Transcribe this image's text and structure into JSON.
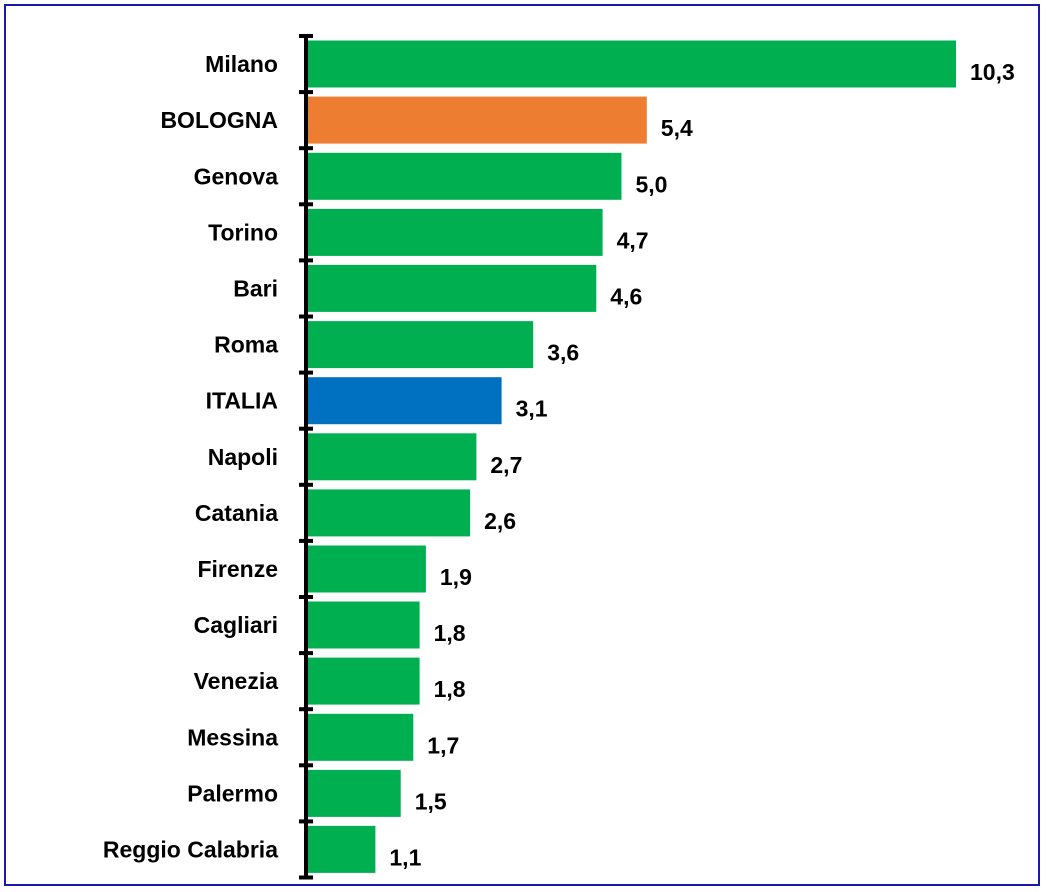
{
  "chart_data": {
    "type": "bar",
    "orientation": "horizontal",
    "categories": [
      "Milano",
      "BOLOGNA",
      "Genova",
      "Torino",
      "Bari",
      "Roma",
      "ITALIA",
      "Napoli",
      "Catania",
      "Firenze",
      "Cagliari",
      "Venezia",
      "Messina",
      "Palermo",
      "Reggio Calabria"
    ],
    "values": [
      10.3,
      5.4,
      5.0,
      4.7,
      4.6,
      3.6,
      3.1,
      2.7,
      2.6,
      1.9,
      1.8,
      1.8,
      1.7,
      1.5,
      1.1
    ],
    "value_labels": [
      "10,3",
      "5,4",
      "5,0",
      "4,7",
      "4,6",
      "3,6",
      "3,1",
      "2,7",
      "2,6",
      "1,9",
      "1,8",
      "1,8",
      "1,7",
      "1,5",
      "1,1"
    ],
    "bar_colors": [
      "#00b050",
      "#ed7d31",
      "#00b050",
      "#00b050",
      "#00b050",
      "#00b050",
      "#0070c0",
      "#00b050",
      "#00b050",
      "#00b050",
      "#00b050",
      "#00b050",
      "#00b050",
      "#00b050",
      "#00b050"
    ],
    "xlim": [
      0,
      10.3
    ],
    "grid": false,
    "legend": "none"
  },
  "colors": {
    "default_bar": "#00b050",
    "highlight_city": "#ed7d31",
    "national": "#0070c0",
    "frame_border": "#1a1aa8",
    "axis": "#000000"
  }
}
